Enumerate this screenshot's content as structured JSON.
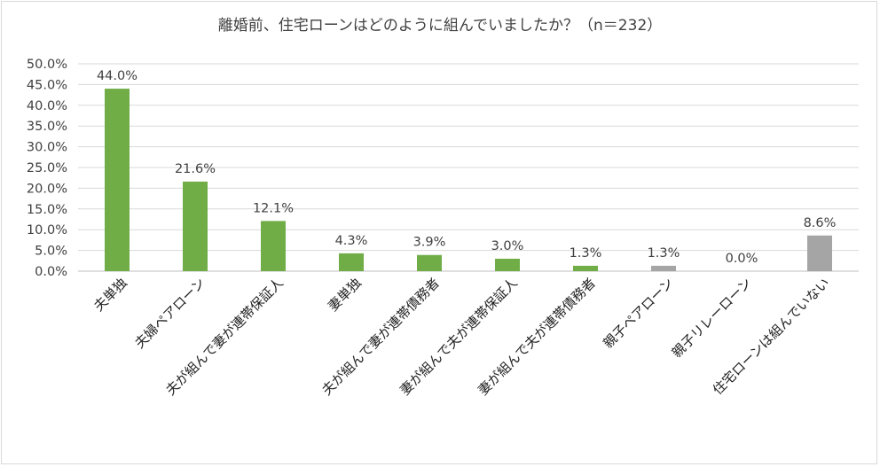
{
  "chart_data": {
    "type": "bar",
    "title": "離婚前、住宅ローンはどのように組んでいましたか？（n＝232）",
    "categories": [
      "夫単独",
      "夫婦ペアローン",
      "夫が組んで妻が連帯保証人",
      "妻単独",
      "夫が組んで妻が連帯債務者",
      "妻が組んで夫が連帯保証人",
      "妻が組んで夫が連帯債務者",
      "親子ペアローン",
      "親子リレーローン",
      "住宅ローンは組んでいない"
    ],
    "values": [
      44.0,
      21.6,
      12.1,
      4.3,
      3.9,
      3.0,
      1.3,
      1.3,
      0.0,
      8.6
    ],
    "data_labels": [
      "44.0%",
      "21.6%",
      "12.1%",
      "4.3%",
      "3.9%",
      "3.0%",
      "1.3%",
      "1.3%",
      "0.0%",
      "8.6%"
    ],
    "bar_colors": [
      "#70ad47",
      "#70ad47",
      "#70ad47",
      "#70ad47",
      "#70ad47",
      "#70ad47",
      "#70ad47",
      "#a5a5a5",
      "#a5a5a5",
      "#a5a5a5"
    ],
    "ylim": [
      0,
      50
    ],
    "yticks": [
      "0.0%",
      "5.0%",
      "10.0%",
      "15.0%",
      "20.0%",
      "25.0%",
      "30.0%",
      "35.0%",
      "40.0%",
      "45.0%",
      "50.0%"
    ],
    "grid": true,
    "legend": "none"
  }
}
